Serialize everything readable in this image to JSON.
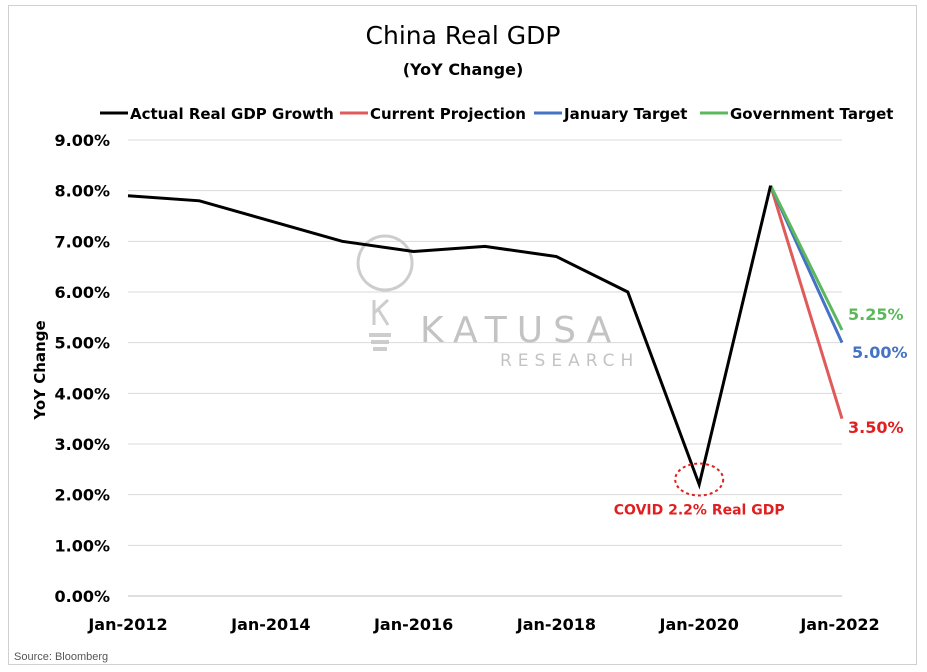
{
  "chart_data": {
    "type": "line",
    "title": "China Real GDP",
    "subtitle": "(YoY Change)",
    "ylabel": "YoY Change",
    "xlabel": "",
    "source": "Source: Bloomberg",
    "ylim": [
      0,
      9
    ],
    "yticks": [
      "0.00%",
      "1.00%",
      "2.00%",
      "3.00%",
      "4.00%",
      "5.00%",
      "6.00%",
      "7.00%",
      "8.00%",
      "9.00%"
    ],
    "xlim": [
      2012,
      2022
    ],
    "xticks": [
      "Jan-2012",
      "Jan-2014",
      "Jan-2016",
      "Jan-2018",
      "Jan-2020",
      "Jan-2022"
    ],
    "grid": "horizontal",
    "legend": "top",
    "series": [
      {
        "name": "Actual Real GDP Growth",
        "color": "#000000",
        "x": [
          2012,
          2013,
          2014,
          2015,
          2016,
          2017,
          2018,
          2019,
          2020,
          2021
        ],
        "values": [
          7.9,
          7.8,
          7.4,
          7.0,
          6.8,
          6.9,
          6.7,
          6.0,
          2.2,
          8.1
        ]
      },
      {
        "name": "Current Projection",
        "color": "#e05a5a",
        "x": [
          2021,
          2022
        ],
        "values": [
          8.1,
          3.5
        ]
      },
      {
        "name": "January Target",
        "color": "#4472c4",
        "x": [
          2021,
          2022
        ],
        "values": [
          8.1,
          5.0
        ]
      },
      {
        "name": "Government Target",
        "color": "#5cb85c",
        "x": [
          2021,
          2022
        ],
        "values": [
          8.1,
          5.25
        ]
      }
    ],
    "end_labels": [
      {
        "text": "5.25%",
        "color": "#5cb85c"
      },
      {
        "text": "5.00%",
        "color": "#4472c4"
      },
      {
        "text": "3.50%",
        "color": "#e02020"
      }
    ],
    "annotation": {
      "text": "COVID 2.2% Real GDP",
      "color": "#e02020",
      "x": 2020,
      "value": 2.2
    }
  },
  "watermark": {
    "line1": "KATUSA",
    "line2": "RESEARCH",
    "logo_icon": "lightbulb-k-icon"
  }
}
